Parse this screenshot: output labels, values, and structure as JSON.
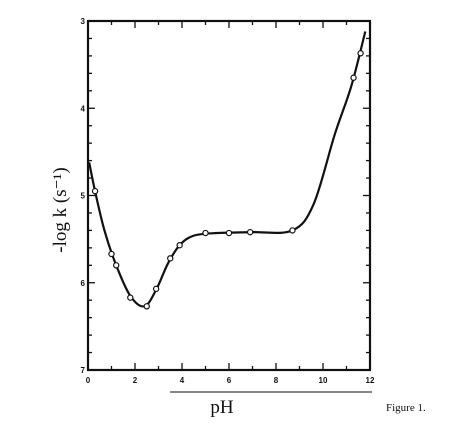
{
  "chart_data": {
    "type": "line",
    "xlabel": "pH",
    "ylabel": "-log k (s⁻¹)",
    "xlim": [
      0,
      12
    ],
    "ylim": [
      3,
      7
    ],
    "y_inverted": true,
    "grid": false,
    "x_ticks": [
      0,
      2,
      4,
      6,
      8,
      10,
      12
    ],
    "y_ticks": [
      3,
      4,
      5,
      6,
      7
    ],
    "series": [
      {
        "markers": "open-circle",
        "points": [
          {
            "x": 0.3,
            "y": 4.95
          },
          {
            "x": 1.0,
            "y": 5.67
          },
          {
            "x": 1.2,
            "y": 5.8
          },
          {
            "x": 1.8,
            "y": 6.17
          },
          {
            "x": 2.5,
            "y": 6.27
          },
          {
            "x": 2.9,
            "y": 6.07
          },
          {
            "x": 3.5,
            "y": 5.72
          },
          {
            "x": 3.9,
            "y": 5.57
          },
          {
            "x": 5.0,
            "y": 5.43
          },
          {
            "x": 6.0,
            "y": 5.43
          },
          {
            "x": 6.9,
            "y": 5.42
          },
          {
            "x": 8.7,
            "y": 5.4
          },
          {
            "x": 11.3,
            "y": 3.65
          },
          {
            "x": 11.6,
            "y": 3.37
          }
        ],
        "curve": [
          {
            "x": 0.05,
            "y": 4.62
          },
          {
            "x": 0.3,
            "y": 4.95
          },
          {
            "x": 0.7,
            "y": 5.4
          },
          {
            "x": 1.2,
            "y": 5.8
          },
          {
            "x": 1.8,
            "y": 6.15
          },
          {
            "x": 2.4,
            "y": 6.27
          },
          {
            "x": 2.9,
            "y": 6.08
          },
          {
            "x": 3.4,
            "y": 5.78
          },
          {
            "x": 3.9,
            "y": 5.57
          },
          {
            "x": 4.5,
            "y": 5.46
          },
          {
            "x": 5.5,
            "y": 5.43
          },
          {
            "x": 7.0,
            "y": 5.42
          },
          {
            "x": 8.7,
            "y": 5.4
          },
          {
            "x": 9.6,
            "y": 5.1
          },
          {
            "x": 10.5,
            "y": 4.3
          },
          {
            "x": 11.2,
            "y": 3.75
          },
          {
            "x": 11.8,
            "y": 3.12
          }
        ]
      }
    ]
  },
  "caption": "Figure 1.",
  "colors": {
    "ink": "#111111",
    "background": "#ffffff"
  }
}
